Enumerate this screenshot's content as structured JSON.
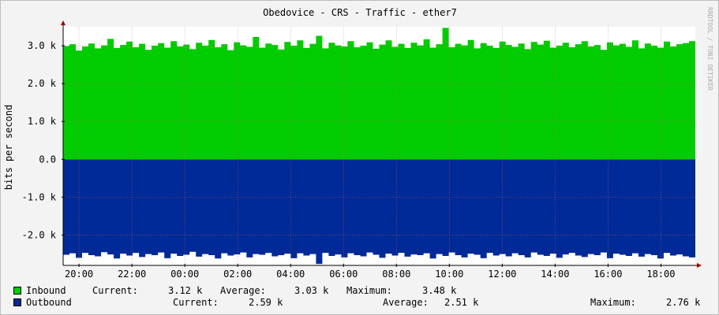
{
  "chart_data": {
    "type": "area",
    "title": "Obedovice - CRS - Traffic - ether7",
    "ylabel": "bits per second",
    "watermark": "RRDTOOL / TOBI OETIKER",
    "ylim": [
      -2800,
      3500
    ],
    "yticks": [
      3000,
      2000,
      1000,
      0,
      -1000,
      -2000
    ],
    "ytick_labels": [
      "3.0 k",
      "2.0 k",
      "1.0 k",
      "0.0",
      "-1.0 k",
      "-2.0 k"
    ],
    "x_tick_labels": [
      "20:00",
      "22:00",
      "00:00",
      "02:00",
      "04:00",
      "06:00",
      "08:00",
      "10:00",
      "12:00",
      "14:00",
      "16:00",
      "18:00"
    ],
    "x_start_hour": 19.4,
    "x_end_hour": 43.3,
    "grid": true,
    "legend_position": "bottom",
    "series": [
      {
        "name": "Inbound",
        "color": "#00cc00",
        "values": [
          2990,
          3040,
          2870,
          2980,
          3060,
          2930,
          3010,
          3180,
          2940,
          3020,
          3110,
          2960,
          3050,
          2890,
          3000,
          3070,
          2950,
          3120,
          2980,
          3030,
          2910,
          3080,
          3000,
          3150,
          2960,
          3040,
          2880,
          3090,
          3010,
          2970,
          3230,
          2950,
          3060,
          3020,
          2900,
          3100,
          3000,
          3140,
          2940,
          3050,
          3260,
          2930,
          3080,
          3010,
          2980,
          3120,
          2960,
          3000,
          3090,
          2920,
          3030,
          3140,
          2970,
          3050,
          2940,
          3080,
          3010,
          3170,
          2950,
          3040,
          3470,
          2960,
          3050,
          3010,
          3150,
          2930,
          3070,
          3000,
          2940,
          3110,
          3020,
          2970,
          3060,
          2910,
          3100,
          3030,
          3130,
          2950,
          3000,
          3080,
          2960,
          3040,
          3120,
          2980,
          3020,
          2890,
          3090,
          3010,
          3050,
          2970,
          3140,
          2930,
          3060,
          3000,
          2950,
          3110,
          2980,
          3040,
          3070,
          3120
        ]
      },
      {
        "name": "Outbound",
        "color": "#002a97",
        "values": [
          2520,
          2480,
          2600,
          2470,
          2530,
          2560,
          2450,
          2510,
          2620,
          2490,
          2540,
          2470,
          2580,
          2500,
          2530,
          2460,
          2610,
          2490,
          2550,
          2520,
          2440,
          2570,
          2500,
          2530,
          2620,
          2480,
          2540,
          2510,
          2460,
          2590,
          2500,
          2520,
          2470,
          2560,
          2530,
          2490,
          2610,
          2480,
          2540,
          2500,
          2760,
          2470,
          2550,
          2510,
          2590,
          2480,
          2530,
          2560,
          2460,
          2520,
          2600,
          2490,
          2540,
          2470,
          2570,
          2510,
          2530,
          2480,
          2620,
          2500,
          2550,
          2460,
          2530,
          2590,
          2490,
          2520,
          2610,
          2470,
          2540,
          2500,
          2560,
          2480,
          2530,
          2590,
          2460,
          2520,
          2550,
          2490,
          2600,
          2510,
          2470,
          2540,
          2580,
          2500,
          2530,
          2460,
          2610,
          2490,
          2520,
          2550,
          2480,
          2570,
          2500,
          2530,
          2620,
          2470,
          2540,
          2510,
          2560,
          2590
        ]
      }
    ]
  },
  "legend": [
    {
      "name": "Inbound",
      "color": "#00cc00",
      "current_label": "Current:",
      "current": "3.12 k",
      "average_label": "Average:",
      "average": "3.03 k",
      "maximum_label": "Maximum:",
      "maximum": "3.48 k"
    },
    {
      "name": "Outbound",
      "color": "#002a97",
      "current_label": "Current:",
      "current": "2.59 k",
      "average_label": "Average:",
      "average": "2.51 k",
      "maximum_label": "Maximum:",
      "maximum": "2.76 k"
    }
  ]
}
